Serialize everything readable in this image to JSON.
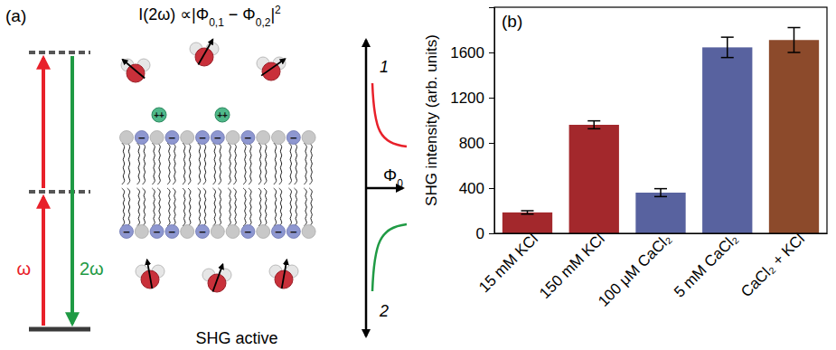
{
  "diagram": {
    "panel_label": "(a)",
    "formula": [
      {
        "text": "I(2ω) ∝|Φ"
      },
      {
        "text": "0,1",
        "sub": true
      },
      {
        "text": " − Φ"
      },
      {
        "text": "0,2",
        "sub": true
      },
      {
        "text": "|"
      },
      {
        "text": "2",
        "sup": true
      }
    ],
    "omega_label": "ω",
    "two_omega_label": "2ω",
    "cation_label": "++",
    "anion_label": "−",
    "potential_label": [
      {
        "text": "Φ"
      },
      {
        "text": "0",
        "sub": true
      }
    ],
    "curve_labels": [
      "1",
      "2"
    ],
    "caption": "SHG active"
  },
  "chart_data": {
    "type": "bar",
    "title": "(b)",
    "y_label": "SHG intensity (arb. units)",
    "categories": [
      "15 mM KCl",
      "150 mM KCl",
      "100 μM CaCl₂",
      "5 mM CaCl₂",
      "CaCl₂ + KCl"
    ],
    "values": [
      185,
      960,
      360,
      1645,
      1710
    ],
    "errors": [
      15,
      35,
      35,
      90,
      110
    ],
    "colors": [
      "#a3282c",
      "#a3282c",
      "#58629f",
      "#58629f",
      "#8c4a2b"
    ],
    "ylim": [
      0,
      2000
    ],
    "yticks": [
      0,
      400,
      800,
      1200,
      1600
    ]
  }
}
